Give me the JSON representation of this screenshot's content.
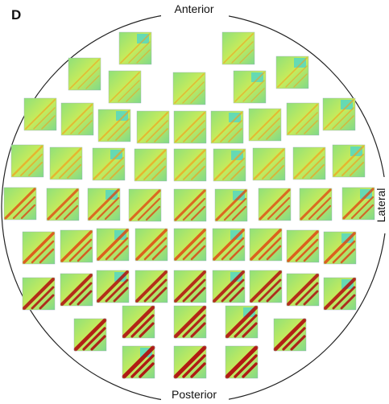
{
  "panel_label": "D",
  "labels": {
    "top": "Anterior",
    "bottom": "Posterior",
    "right": "Lateral"
  }
}
